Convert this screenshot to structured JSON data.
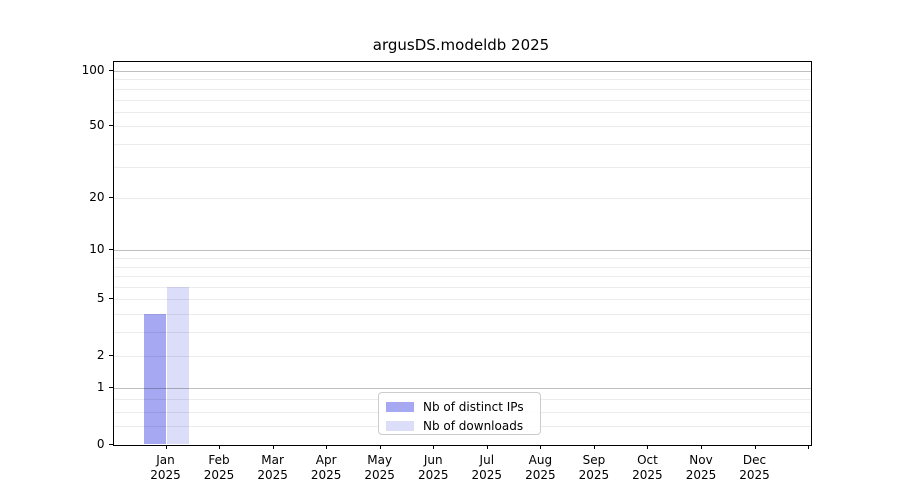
{
  "chart_data": {
    "type": "bar",
    "title": "argusDS.modeldb 2025",
    "categories": [
      "Jan",
      "Feb",
      "Mar",
      "Apr",
      "May",
      "Jun",
      "Jul",
      "Aug",
      "Sep",
      "Oct",
      "Nov",
      "Dec"
    ],
    "category_year": "2025",
    "series": [
      {
        "name": "Nb of distinct IPs",
        "color": "#a6a8f1",
        "values": [
          4,
          0,
          0,
          0,
          0,
          0,
          0,
          0,
          0,
          0,
          0,
          0
        ]
      },
      {
        "name": "Nb of downloads",
        "color": "#dcddf9",
        "values": [
          6,
          0,
          0,
          0,
          0,
          0,
          0,
          0,
          0,
          0,
          0,
          0
        ]
      }
    ],
    "xlabel": "",
    "ylabel": "",
    "y_scale": {
      "type": "log1p",
      "top_value": 113
    },
    "y_ticks": [
      0,
      1,
      2,
      5,
      10,
      20,
      50,
      100
    ],
    "y_major_gridlines": [
      1,
      10,
      100
    ],
    "y_minor_gridlines": [
      0.25,
      0.5,
      0.75,
      2,
      3,
      4,
      5,
      6,
      7,
      8,
      9,
      20,
      30,
      40,
      50,
      60,
      70,
      80,
      90
    ],
    "grid": true,
    "legend_position": "lower center",
    "extra_unlabeled_xtick": true
  },
  "colors": {
    "background": "#ffffff",
    "axis": "#000000",
    "major_grid": "#bfbfbf",
    "minor_grid": "#ececec",
    "legend_border": "#cccccc"
  }
}
